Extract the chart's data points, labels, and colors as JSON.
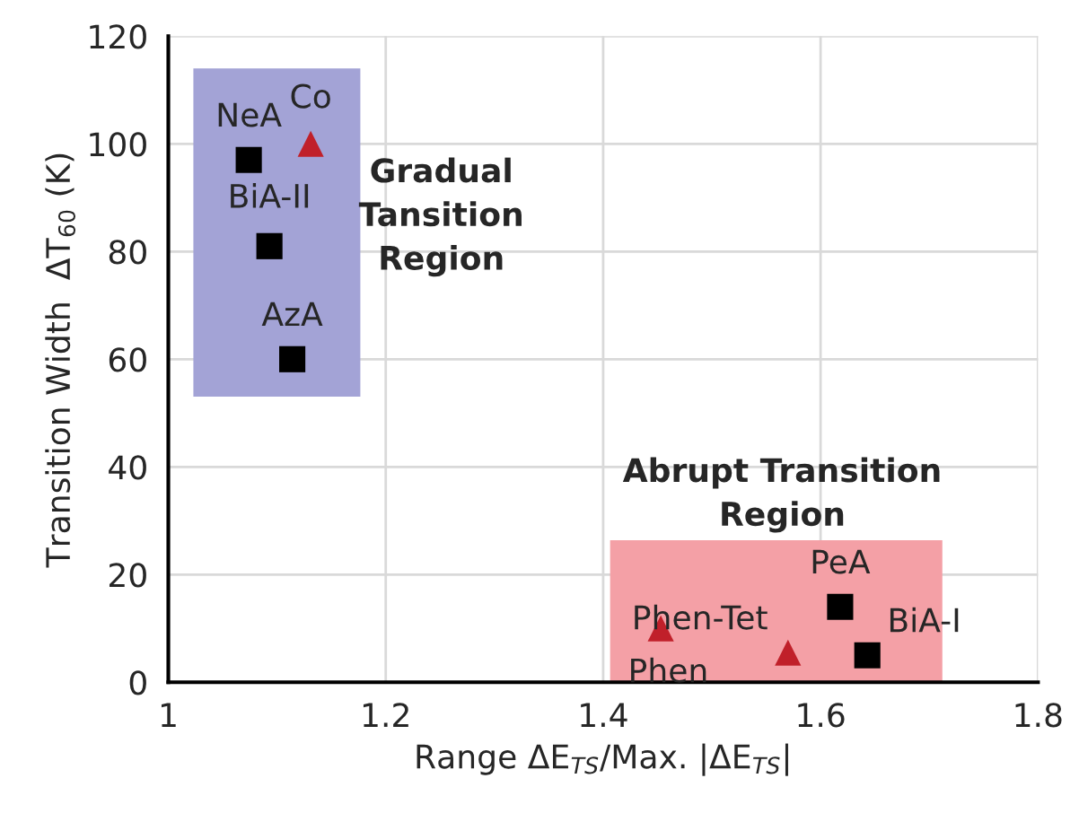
{
  "chart_data": {
    "type": "scatter",
    "xlabel": "Range ΔE$_{TS}$/Max. |ΔE$_{TS}$|",
    "ylabel": "Transition Width  ΔT$_{60}$ (K)",
    "xlim": [
      1,
      1.8
    ],
    "xticks": [
      1,
      1.2,
      1.4,
      1.6,
      1.8
    ],
    "ylim": [
      0,
      120
    ],
    "yticks": [
      0,
      20,
      40,
      60,
      80,
      100,
      120
    ],
    "grid": true,
    "series": [
      {
        "color": "#000000",
        "marker": "square",
        "x": [
          1.074,
          1.093,
          1.114,
          1.618,
          1.643
        ],
        "values": [
          97,
          81,
          60,
          14,
          5
        ]
      },
      {
        "color": "#c0202a",
        "marker": "triangle",
        "x": [
          1.131,
          1.453,
          1.57
        ],
        "values": [
          100,
          10,
          5.5
        ]
      }
    ],
    "annotations": [
      {
        "text": "NeA",
        "x": 1.074,
        "y": 97
      },
      {
        "text": "Co",
        "x": 1.131,
        "y": 100
      },
      {
        "text": "BiA-II",
        "x": 1.093,
        "y": 81
      },
      {
        "text": "AzA",
        "x": 1.114,
        "y": 60
      },
      {
        "text": "PeA",
        "x": 1.618,
        "y": 14
      },
      {
        "text": "Phen",
        "x": 1.453,
        "y": 10
      },
      {
        "text": "Phen-Tet",
        "x": 1.57,
        "y": 5.5
      },
      {
        "text": "BiA-I",
        "x": 1.643,
        "y": 5
      },
      "Gradual\nTansition\nRegion",
      "Abrupt Transition\nRegion"
    ]
  }
}
